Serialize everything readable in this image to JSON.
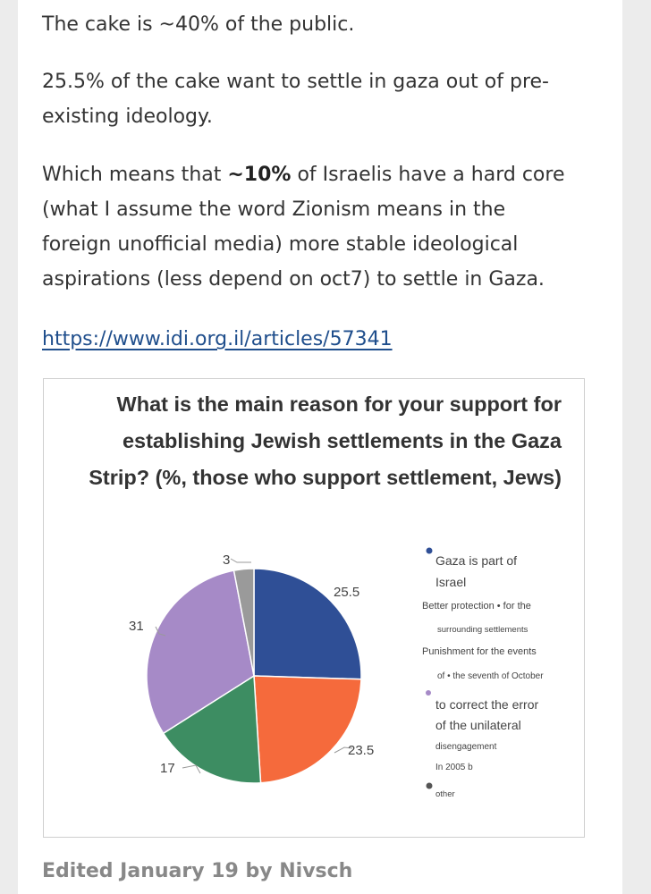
{
  "post": {
    "p1": "The cake is ~40% of the public.",
    "p2": {
      "line1": "25.5% of the cake want to settle in gaza out of pre-",
      "line2": "existing ideology."
    },
    "p3": {
      "pre": "Which means that ",
      "bold": "~10%",
      "post": " of Israelis have a hard core",
      "line2": "(what I assume the word Zionism means in the",
      "line3": "foreign unofficial media) more stable ideological",
      "line4": "aspirations (less depend on oct7) to settle in Gaza."
    },
    "link": "https://www.idi.org.il/articles/57341",
    "edited": "Edited January 19 by Nivsch"
  },
  "figure": {
    "title_lines": [
      "What is the main reason for your support for",
      "establishing Jewish settlements in the Gaza",
      "Strip? (%, those who support settlement, Jews)"
    ],
    "legend": [
      "Gaza is part of",
      "Israel",
      "Better protection • for the",
      "surrounding settlements",
      "Punishment for the events",
      "of • the seventh of October",
      "to correct the error",
      "of the unilateral",
      "disengagement",
      "In 2005 b",
      "other"
    ]
  },
  "chart_data": {
    "type": "pie",
    "title": "What is the main reason for your support for establishing Jewish settlements in the Gaza Strip? (%, those who support settlement, Jews)",
    "slices": [
      {
        "value": 25.5,
        "label": "25.5",
        "color": "#2f4f96"
      },
      {
        "value": 23.5,
        "label": "23.5",
        "color": "#f56a3c"
      },
      {
        "value": 17,
        "label": "17",
        "color": "#3d8d62"
      },
      {
        "value": 31,
        "label": "31",
        "color": "#a68ac7"
      },
      {
        "value": 3,
        "label": "3",
        "color": "#9a9a9a"
      }
    ],
    "legend_placement": "right"
  }
}
